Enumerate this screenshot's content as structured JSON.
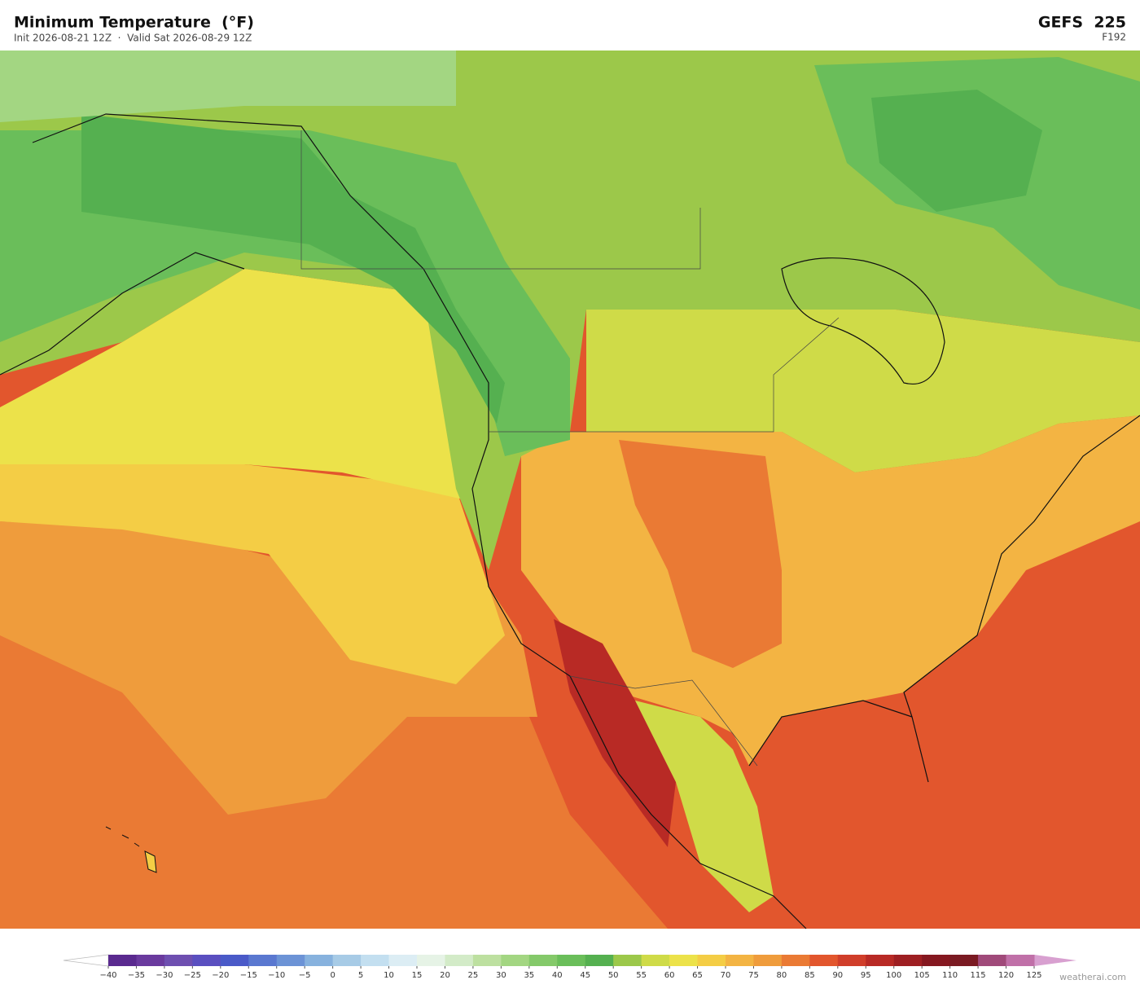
{
  "header": {
    "title": "Minimum Temperature  (°F)",
    "subtitle": "Init 2026-08-21 12Z  ·  Valid Sat 2026-08-29 12Z",
    "model": "GEFS  225",
    "forecast_hour": "F192"
  },
  "colorbar": {
    "ticks": [
      {
        "value": -40,
        "label": "−40"
      },
      {
        "value": -35,
        "label": "−35"
      },
      {
        "value": -30,
        "label": "−30"
      },
      {
        "value": -25,
        "label": "−25"
      },
      {
        "value": -20,
        "label": "−20"
      },
      {
        "value": -15,
        "label": "−15"
      },
      {
        "value": -10,
        "label": "−10"
      },
      {
        "value": -5,
        "label": "−5"
      },
      0,
      5,
      10,
      15,
      20,
      25,
      30,
      35,
      40,
      45,
      50,
      55,
      60,
      65,
      70,
      75,
      80,
      85,
      90,
      95,
      100,
      105,
      110,
      115,
      120,
      125
    ],
    "colors": [
      "#5a2a8f",
      "#6a3a9e",
      "#6e4fb0",
      "#5a4fc0",
      "#4a5ac8",
      "#5a78d0",
      "#6c93d6",
      "#87b2de",
      "#a7cbe6",
      "#c3dff0",
      "#dcedf4",
      "#e6f3e6",
      "#d3ebc8",
      "#bde0a0",
      "#a3d682",
      "#84c96a",
      "#6abe5a",
      "#55b050",
      "#9cc84a",
      "#cfdb48",
      "#ece24a",
      "#f4cd45",
      "#f3b443",
      "#ef9c3c",
      "#ea7a34",
      "#e2562d",
      "#d03e2a",
      "#b82a25",
      "#9e1f22",
      "#851820",
      "#7a1a22",
      "#a04a7a",
      "#c070a8"
    ],
    "under_color": "#ffffff",
    "over_color": "#d8a0d0"
  },
  "watermark": "weatherai.com"
}
